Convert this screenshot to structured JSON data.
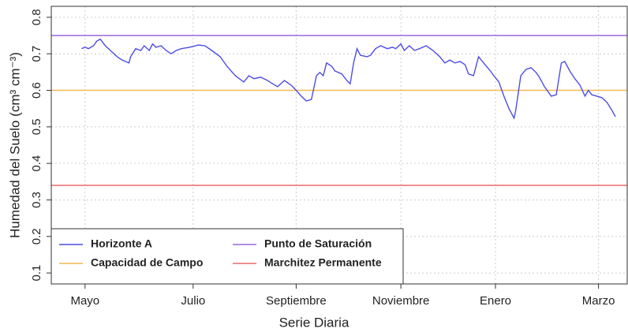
{
  "chart_data": {
    "type": "line",
    "x_label": "Serie Diaria",
    "y_label": "Humedad del Suelo (cm³ cm⁻³)",
    "xlim": [
      -18,
      323
    ],
    "xticks": [
      {
        "value": 2,
        "label": "Mayo"
      },
      {
        "value": 66,
        "label": "Julio"
      },
      {
        "value": 127,
        "label": "Septiembre"
      },
      {
        "value": 189,
        "label": "Noviembre"
      },
      {
        "value": 245,
        "label": "Enero"
      },
      {
        "value": 306,
        "label": "Marzo"
      }
    ],
    "ylim": [
      0.07,
      0.83
    ],
    "yticks": [
      0.1,
      0.2,
      0.3,
      0.4,
      0.5,
      0.6,
      0.7,
      0.8
    ],
    "grid": true,
    "legend": "bottom-left",
    "x": [
      0,
      2,
      4,
      7,
      9,
      11,
      14,
      17,
      21,
      24,
      28,
      29,
      32,
      35,
      37,
      40,
      42,
      44,
      47,
      50,
      53,
      56,
      59,
      64,
      69,
      73,
      77,
      82,
      86,
      91,
      96,
      99,
      102,
      106,
      110,
      113,
      116,
      120,
      124,
      127,
      130,
      133,
      136,
      139,
      141,
      143,
      145,
      148,
      150,
      154,
      157,
      159,
      161,
      163,
      165,
      169,
      171,
      174,
      177,
      181,
      184,
      186,
      189,
      191,
      194,
      197,
      200,
      204,
      208,
      212,
      215,
      218,
      221,
      224,
      227,
      229,
      232,
      235,
      238,
      242,
      244,
      247,
      250,
      253,
      256,
      257,
      260,
      263,
      266,
      269,
      271,
      274,
      278,
      281,
      284,
      286,
      289,
      292,
      295,
      298,
      300,
      302,
      305,
      308,
      311,
      314,
      316
    ],
    "series": [
      {
        "name": "Horizonte A",
        "color": "#4d4de6",
        "values": [
          0.714,
          0.718,
          0.714,
          0.722,
          0.735,
          0.74,
          0.722,
          0.709,
          0.692,
          0.683,
          0.675,
          0.692,
          0.714,
          0.709,
          0.722,
          0.709,
          0.727,
          0.718,
          0.722,
          0.709,
          0.7,
          0.709,
          0.714,
          0.718,
          0.724,
          0.722,
          0.709,
          0.692,
          0.666,
          0.64,
          0.623,
          0.64,
          0.632,
          0.636,
          0.627,
          0.618,
          0.61,
          0.627,
          0.614,
          0.6,
          0.584,
          0.571,
          0.575,
          0.64,
          0.649,
          0.64,
          0.675,
          0.666,
          0.653,
          0.645,
          0.627,
          0.618,
          0.675,
          0.714,
          0.696,
          0.692,
          0.696,
          0.714,
          0.722,
          0.714,
          0.718,
          0.714,
          0.727,
          0.709,
          0.722,
          0.709,
          0.714,
          0.722,
          0.709,
          0.692,
          0.675,
          0.683,
          0.675,
          0.679,
          0.67,
          0.645,
          0.64,
          0.692,
          0.675,
          0.653,
          0.64,
          0.623,
          0.584,
          0.55,
          0.524,
          0.545,
          0.64,
          0.657,
          0.662,
          0.649,
          0.636,
          0.61,
          0.584,
          0.588,
          0.675,
          0.679,
          0.653,
          0.632,
          0.614,
          0.584,
          0.6,
          0.588,
          0.584,
          0.58,
          0.567,
          0.545,
          0.528
        ]
      }
    ],
    "reference_lines": [
      {
        "name": "Punto de Saturación",
        "color": "#9966dd",
        "value": 0.75
      },
      {
        "name": "Capacidad de Campo",
        "color": "#f2b950",
        "value": 0.6
      },
      {
        "name": "Marchitez Permanente",
        "color": "#e86a6a",
        "value": 0.34
      }
    ]
  }
}
